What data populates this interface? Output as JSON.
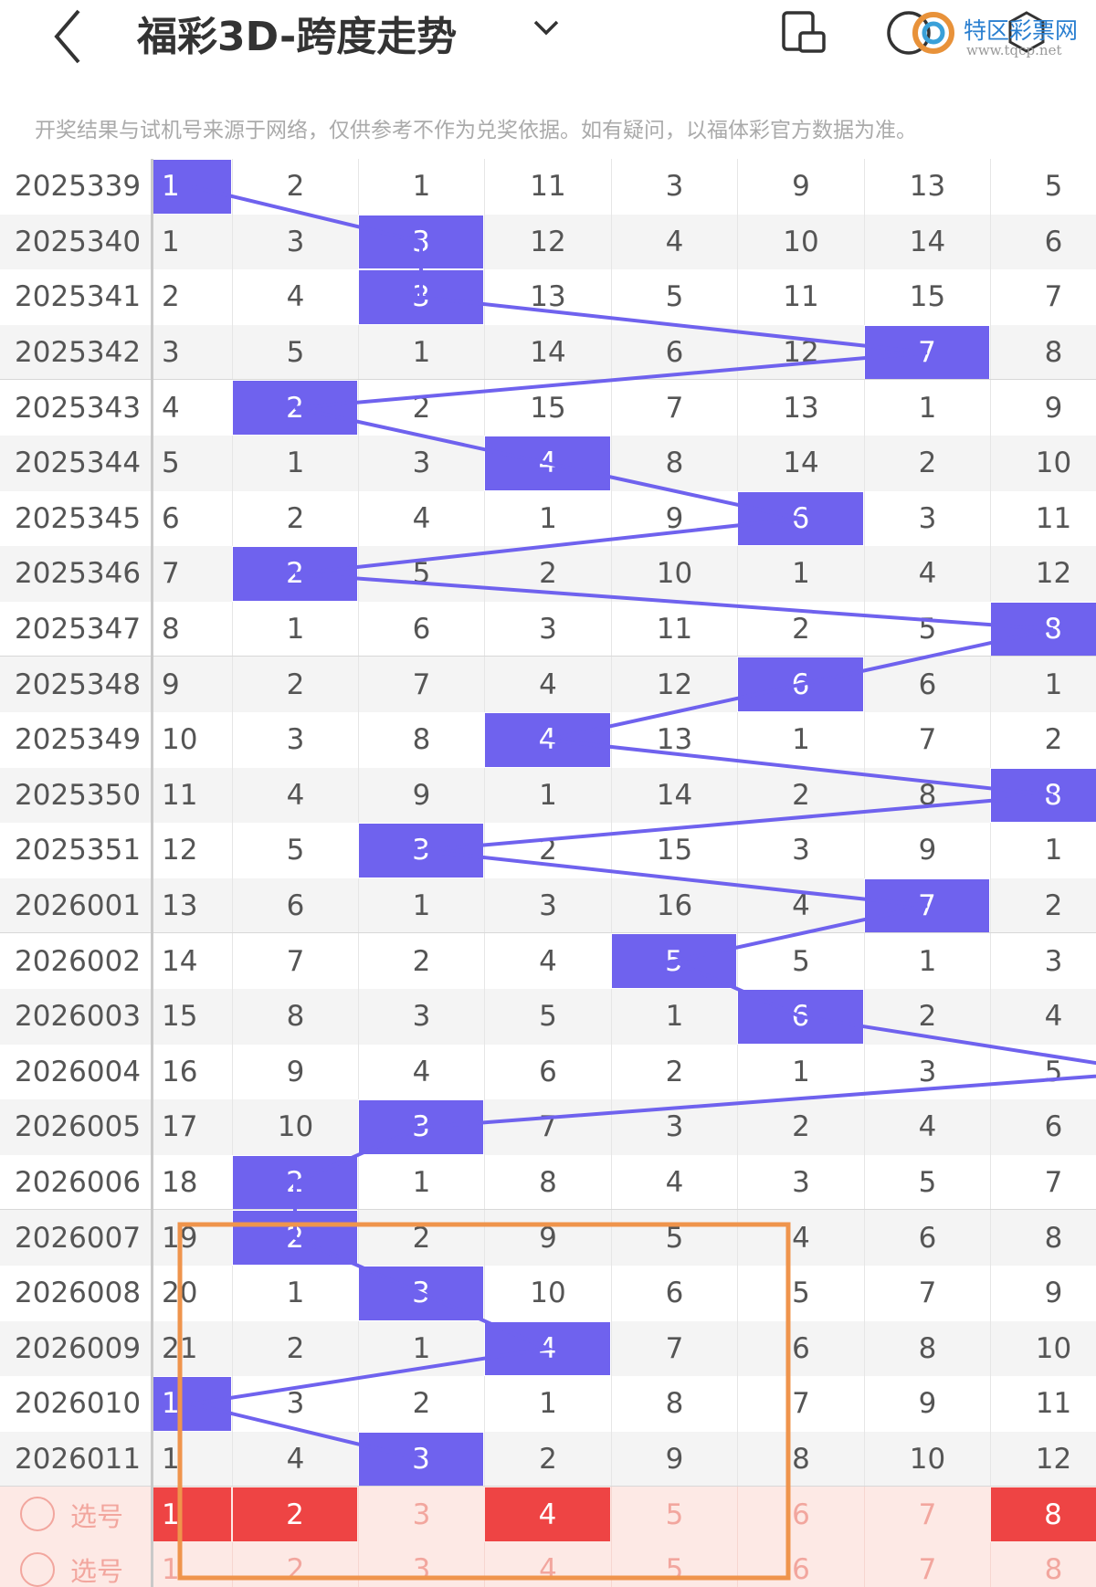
{
  "header": {
    "title": "福彩3D-跨度走势",
    "watermark": "特区彩票网",
    "watermark_url": "www.tqcp.net"
  },
  "notice": "开奖结果与试机号来源于网络，仅供参考不作为兑奖依据。如有疑问，以福体彩官方数据为准。",
  "table": {
    "rows": [
      {
        "issue": "2025339",
        "cells": [
          1,
          2,
          1,
          11,
          3,
          9,
          13,
          5
        ],
        "highlight": 0
      },
      {
        "issue": "2025340",
        "cells": [
          1,
          3,
          3,
          12,
          4,
          10,
          14,
          6
        ],
        "highlight": 2
      },
      {
        "issue": "2025341",
        "cells": [
          2,
          4,
          3,
          13,
          5,
          11,
          15,
          7
        ],
        "highlight": 2
      },
      {
        "issue": "2025342",
        "cells": [
          3,
          5,
          1,
          14,
          6,
          12,
          7,
          8
        ],
        "highlight": 6
      },
      {
        "issue": "2025343",
        "cells": [
          4,
          2,
          2,
          15,
          7,
          13,
          1,
          9
        ],
        "highlight": 1
      },
      {
        "issue": "2025344",
        "cells": [
          5,
          1,
          3,
          4,
          8,
          14,
          2,
          10
        ],
        "highlight": 3
      },
      {
        "issue": "2025345",
        "cells": [
          6,
          2,
          4,
          1,
          9,
          6,
          3,
          11
        ],
        "highlight": 5
      },
      {
        "issue": "2025346",
        "cells": [
          7,
          2,
          5,
          2,
          10,
          1,
          4,
          12
        ],
        "highlight": 1
      },
      {
        "issue": "2025347",
        "cells": [
          8,
          1,
          6,
          3,
          11,
          2,
          5,
          8
        ],
        "highlight": 7
      },
      {
        "issue": "2025348",
        "cells": [
          9,
          2,
          7,
          4,
          12,
          6,
          6,
          1
        ],
        "highlight": 5
      },
      {
        "issue": "2025349",
        "cells": [
          10,
          3,
          8,
          4,
          13,
          1,
          7,
          2
        ],
        "highlight": 3
      },
      {
        "issue": "2025350",
        "cells": [
          11,
          4,
          9,
          1,
          14,
          2,
          8,
          8
        ],
        "highlight": 7
      },
      {
        "issue": "2025351",
        "cells": [
          12,
          5,
          3,
          2,
          15,
          3,
          9,
          1
        ],
        "highlight": 2
      },
      {
        "issue": "2026001",
        "cells": [
          13,
          6,
          1,
          3,
          16,
          4,
          7,
          2
        ],
        "highlight": 6
      },
      {
        "issue": "2026002",
        "cells": [
          14,
          7,
          2,
          4,
          5,
          5,
          1,
          3
        ],
        "highlight": 4
      },
      {
        "issue": "2026003",
        "cells": [
          15,
          8,
          3,
          5,
          1,
          6,
          2,
          4
        ],
        "highlight": 5
      },
      {
        "issue": "2026004",
        "cells": [
          16,
          9,
          4,
          6,
          2,
          1,
          3,
          5
        ],
        "highlight": null
      },
      {
        "issue": "2026005",
        "cells": [
          17,
          10,
          3,
          7,
          3,
          2,
          4,
          6
        ],
        "highlight": 2
      },
      {
        "issue": "2026006",
        "cells": [
          18,
          2,
          1,
          8,
          4,
          3,
          5,
          7
        ],
        "highlight": 1
      },
      {
        "issue": "2026007",
        "cells": [
          19,
          2,
          2,
          9,
          5,
          4,
          6,
          8
        ],
        "highlight": 1
      },
      {
        "issue": "2026008",
        "cells": [
          20,
          1,
          3,
          10,
          6,
          5,
          7,
          9
        ],
        "highlight": 2
      },
      {
        "issue": "2026009",
        "cells": [
          21,
          2,
          1,
          4,
          7,
          6,
          8,
          10
        ],
        "highlight": 3
      },
      {
        "issue": "2026010",
        "cells": [
          1,
          3,
          2,
          1,
          8,
          7,
          9,
          11
        ],
        "highlight": 0
      },
      {
        "issue": "2026011",
        "cells": [
          1,
          4,
          3,
          2,
          9,
          8,
          10,
          12
        ],
        "highlight": 2
      }
    ],
    "pick_rows": [
      {
        "label": "选号",
        "cells": [
          1,
          2,
          3,
          4,
          5,
          6,
          7,
          8
        ],
        "selected": [
          0,
          1,
          3,
          7
        ]
      },
      {
        "label": "选号",
        "cells": [
          1,
          2,
          3,
          4,
          5,
          6,
          7,
          8
        ],
        "selected": []
      }
    ]
  }
}
